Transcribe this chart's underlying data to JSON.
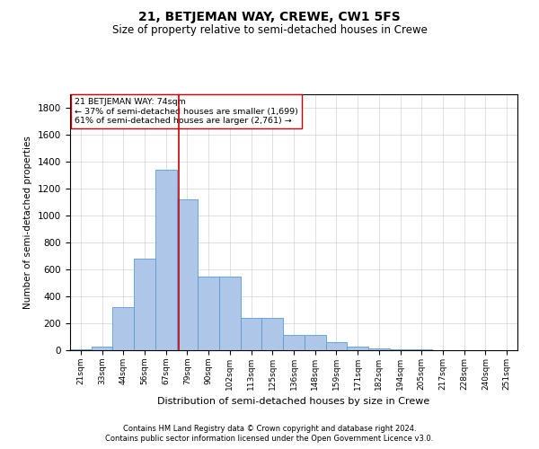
{
  "title": "21, BETJEMAN WAY, CREWE, CW1 5FS",
  "subtitle": "Size of property relative to semi-detached houses in Crewe",
  "xlabel": "Distribution of semi-detached houses by size in Crewe",
  "ylabel": "Number of semi-detached properties",
  "property_label": "21 BETJEMAN WAY: 74sqm",
  "pct_smaller": 37,
  "pct_larger": 61,
  "n_smaller": 1699,
  "n_larger": 2761,
  "bin_labels": [
    "21sqm",
    "33sqm",
    "44sqm",
    "56sqm",
    "67sqm",
    "79sqm",
    "90sqm",
    "102sqm",
    "113sqm",
    "125sqm",
    "136sqm",
    "148sqm",
    "159sqm",
    "171sqm",
    "182sqm",
    "194sqm",
    "205sqm",
    "217sqm",
    "228sqm",
    "240sqm",
    "251sqm"
  ],
  "bar_values": [
    5,
    30,
    320,
    680,
    1340,
    1120,
    550,
    550,
    240,
    240,
    115,
    115,
    60,
    30,
    15,
    6,
    4,
    2,
    1,
    1,
    0
  ],
  "bar_color": "#aec6e8",
  "bar_edge_color": "#5b9bd5",
  "vline_color": "#cc0000",
  "vline_position": 4.6,
  "box_color": "#cc0000",
  "ylim": [
    0,
    1900
  ],
  "yticks": [
    0,
    200,
    400,
    600,
    800,
    1000,
    1200,
    1400,
    1600,
    1800
  ],
  "footnote1": "Contains HM Land Registry data © Crown copyright and database right 2024.",
  "footnote2": "Contains public sector information licensed under the Open Government Licence v3.0."
}
